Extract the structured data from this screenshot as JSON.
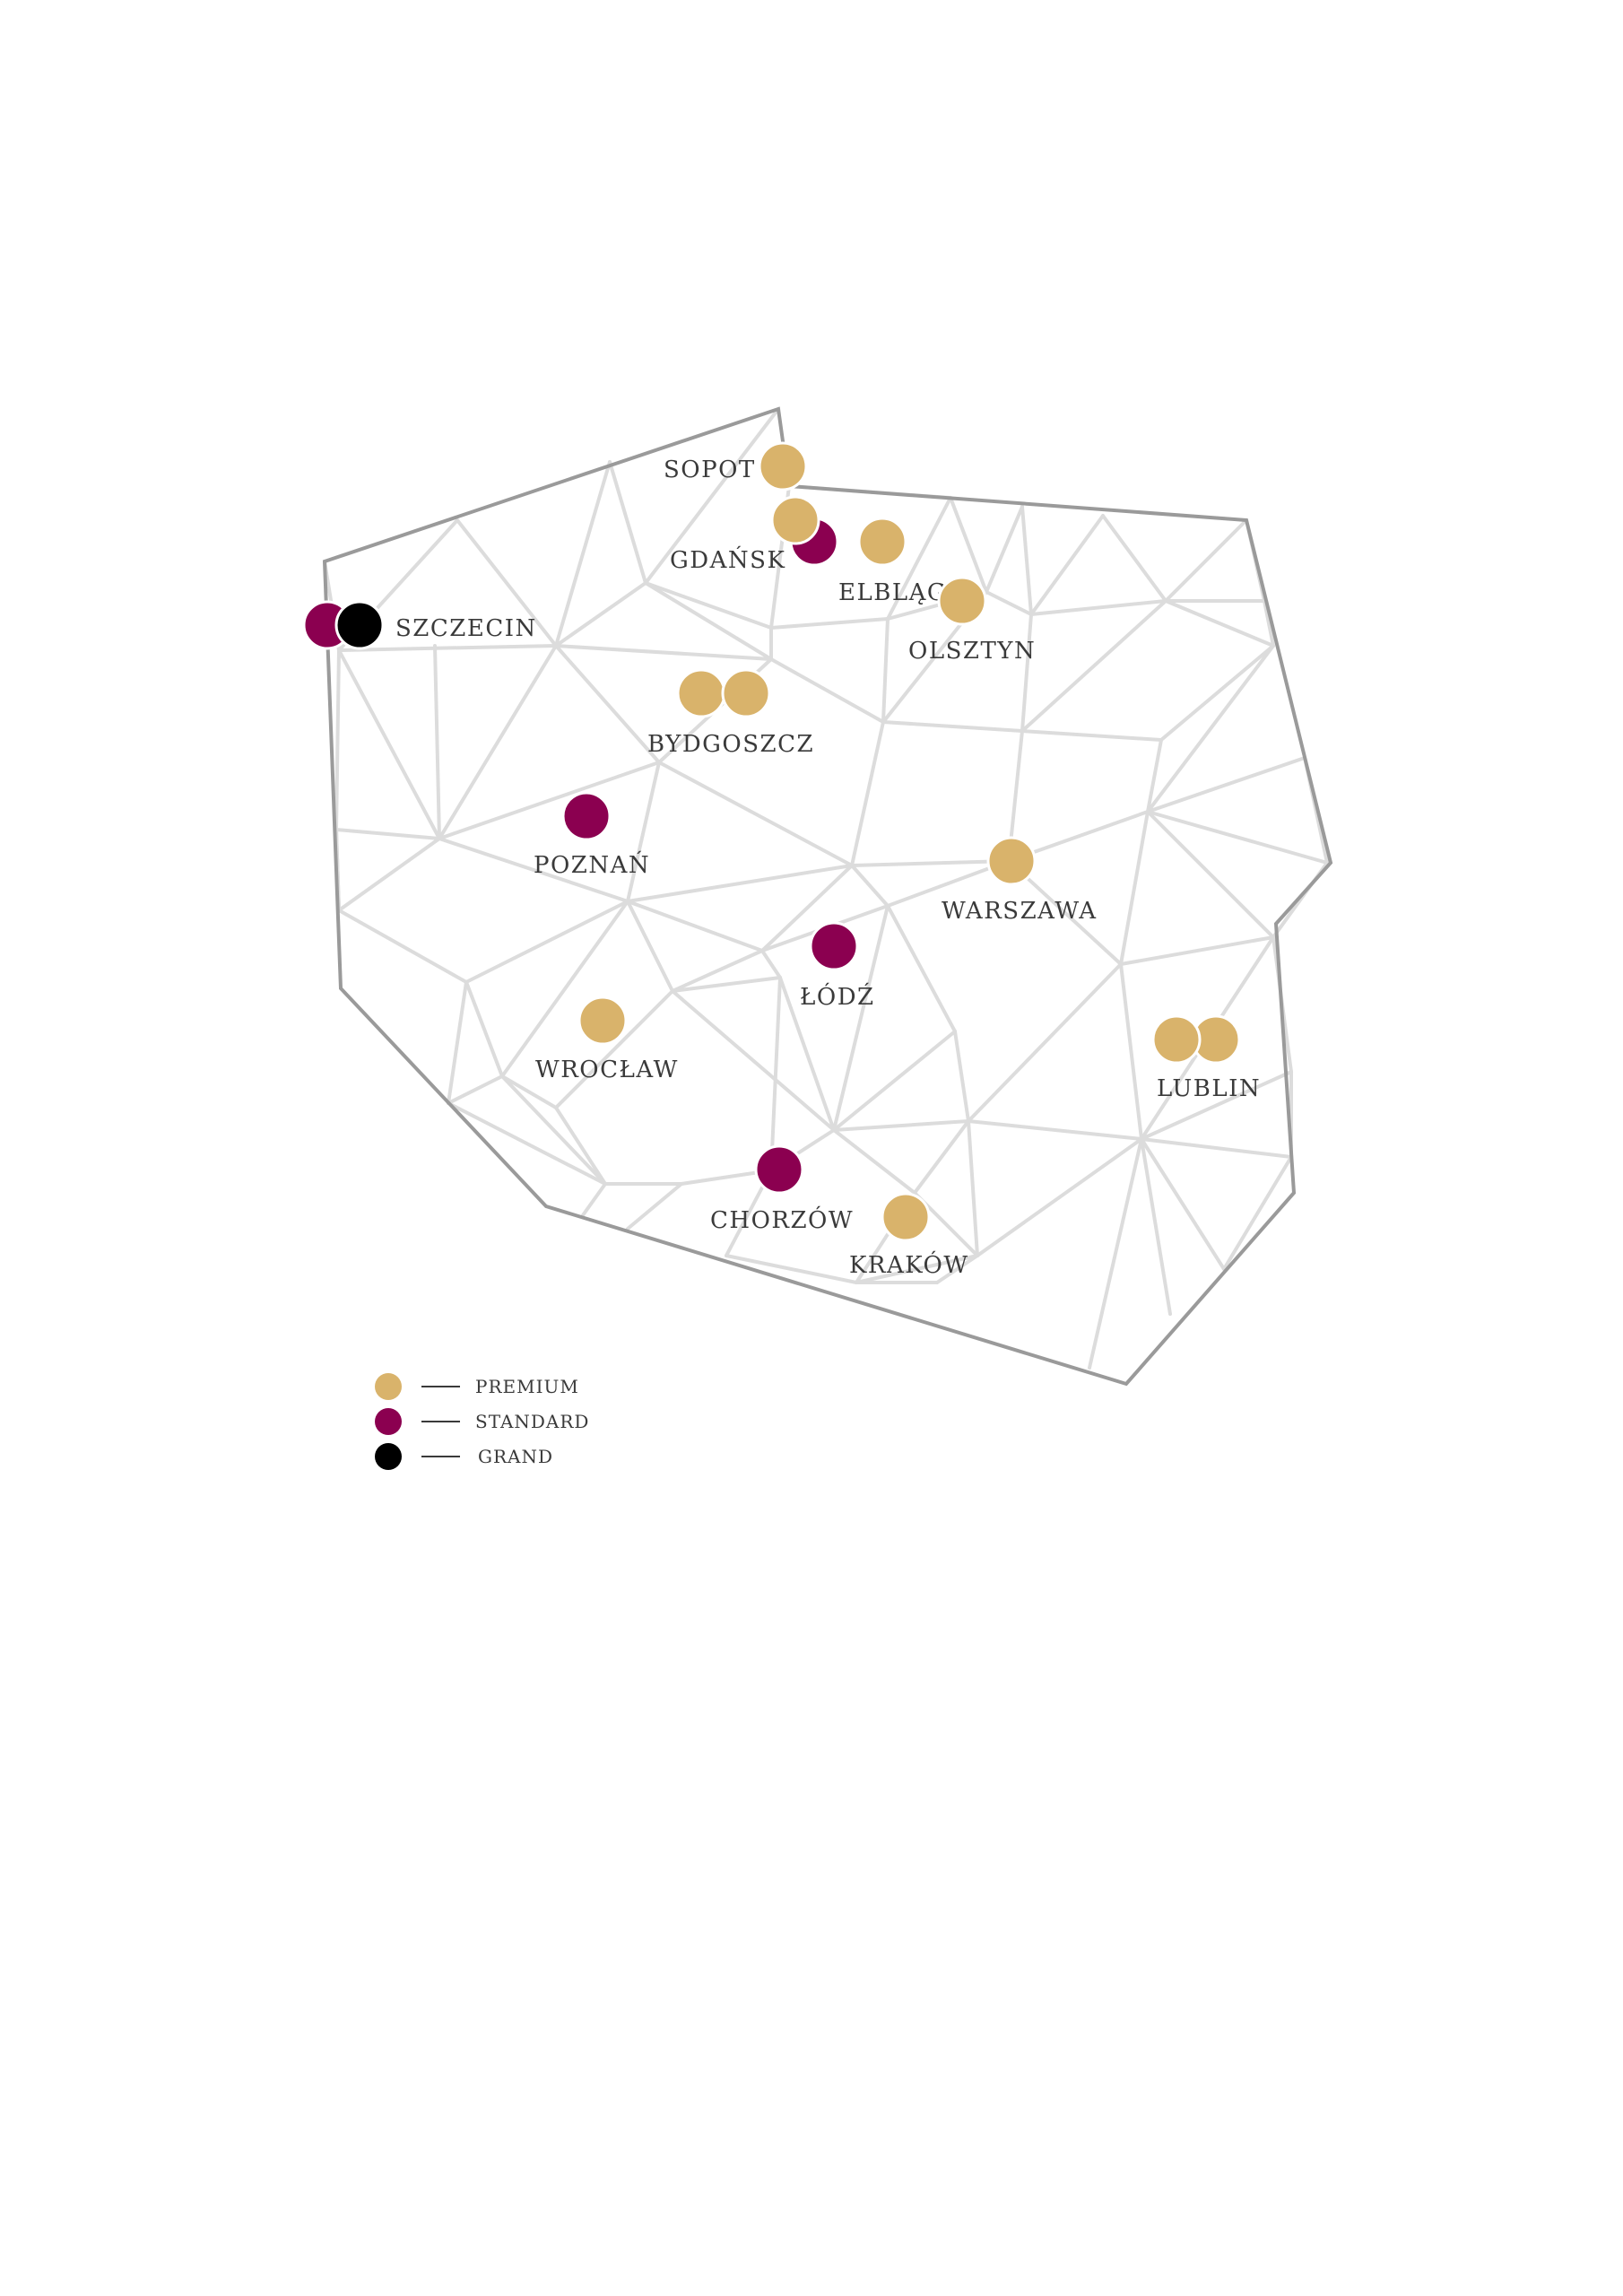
{
  "colors": {
    "premium": "#d9b36b",
    "standard": "#8b0050",
    "grand": "#000000",
    "mesh": "#dcdcdc",
    "outline": "#9a9a9a",
    "text": "#3a3a3a"
  },
  "cities": [
    {
      "id": "sopot",
      "name": "SOPOT",
      "markers": [
        "premium"
      ]
    },
    {
      "id": "gdansk",
      "name": "GDAŃSK",
      "markers": [
        "premium",
        "standard"
      ]
    },
    {
      "id": "elblag",
      "name": "ELBLĄG",
      "markers": [
        "premium"
      ]
    },
    {
      "id": "olsztyn",
      "name": "OLSZTYN",
      "markers": [
        "premium"
      ]
    },
    {
      "id": "szczecin",
      "name": "SZCZECIN",
      "markers": [
        "standard",
        "grand"
      ]
    },
    {
      "id": "bydgoszcz",
      "name": "BYDGOSZCZ",
      "markers": [
        "premium",
        "premium"
      ]
    },
    {
      "id": "poznan",
      "name": "POZNAŃ",
      "markers": [
        "standard"
      ]
    },
    {
      "id": "warszawa",
      "name": "WARSZAWA",
      "markers": [
        "premium"
      ]
    },
    {
      "id": "lodz",
      "name": "ŁÓDŹ",
      "markers": [
        "standard"
      ]
    },
    {
      "id": "wroclaw",
      "name": "WROCŁAW",
      "markers": [
        "premium"
      ]
    },
    {
      "id": "lublin",
      "name": "LUBLIN",
      "markers": [
        "premium",
        "premium"
      ]
    },
    {
      "id": "chorzow",
      "name": "CHORZÓW",
      "markers": [
        "standard"
      ]
    },
    {
      "id": "krakow",
      "name": "KRAKÓW",
      "markers": [
        "premium"
      ]
    }
  ],
  "legend": [
    {
      "type": "premium",
      "label": "PREMIUM"
    },
    {
      "type": "standard",
      "label": "STANDARD"
    },
    {
      "type": "grand",
      "label": "GRAND"
    }
  ]
}
